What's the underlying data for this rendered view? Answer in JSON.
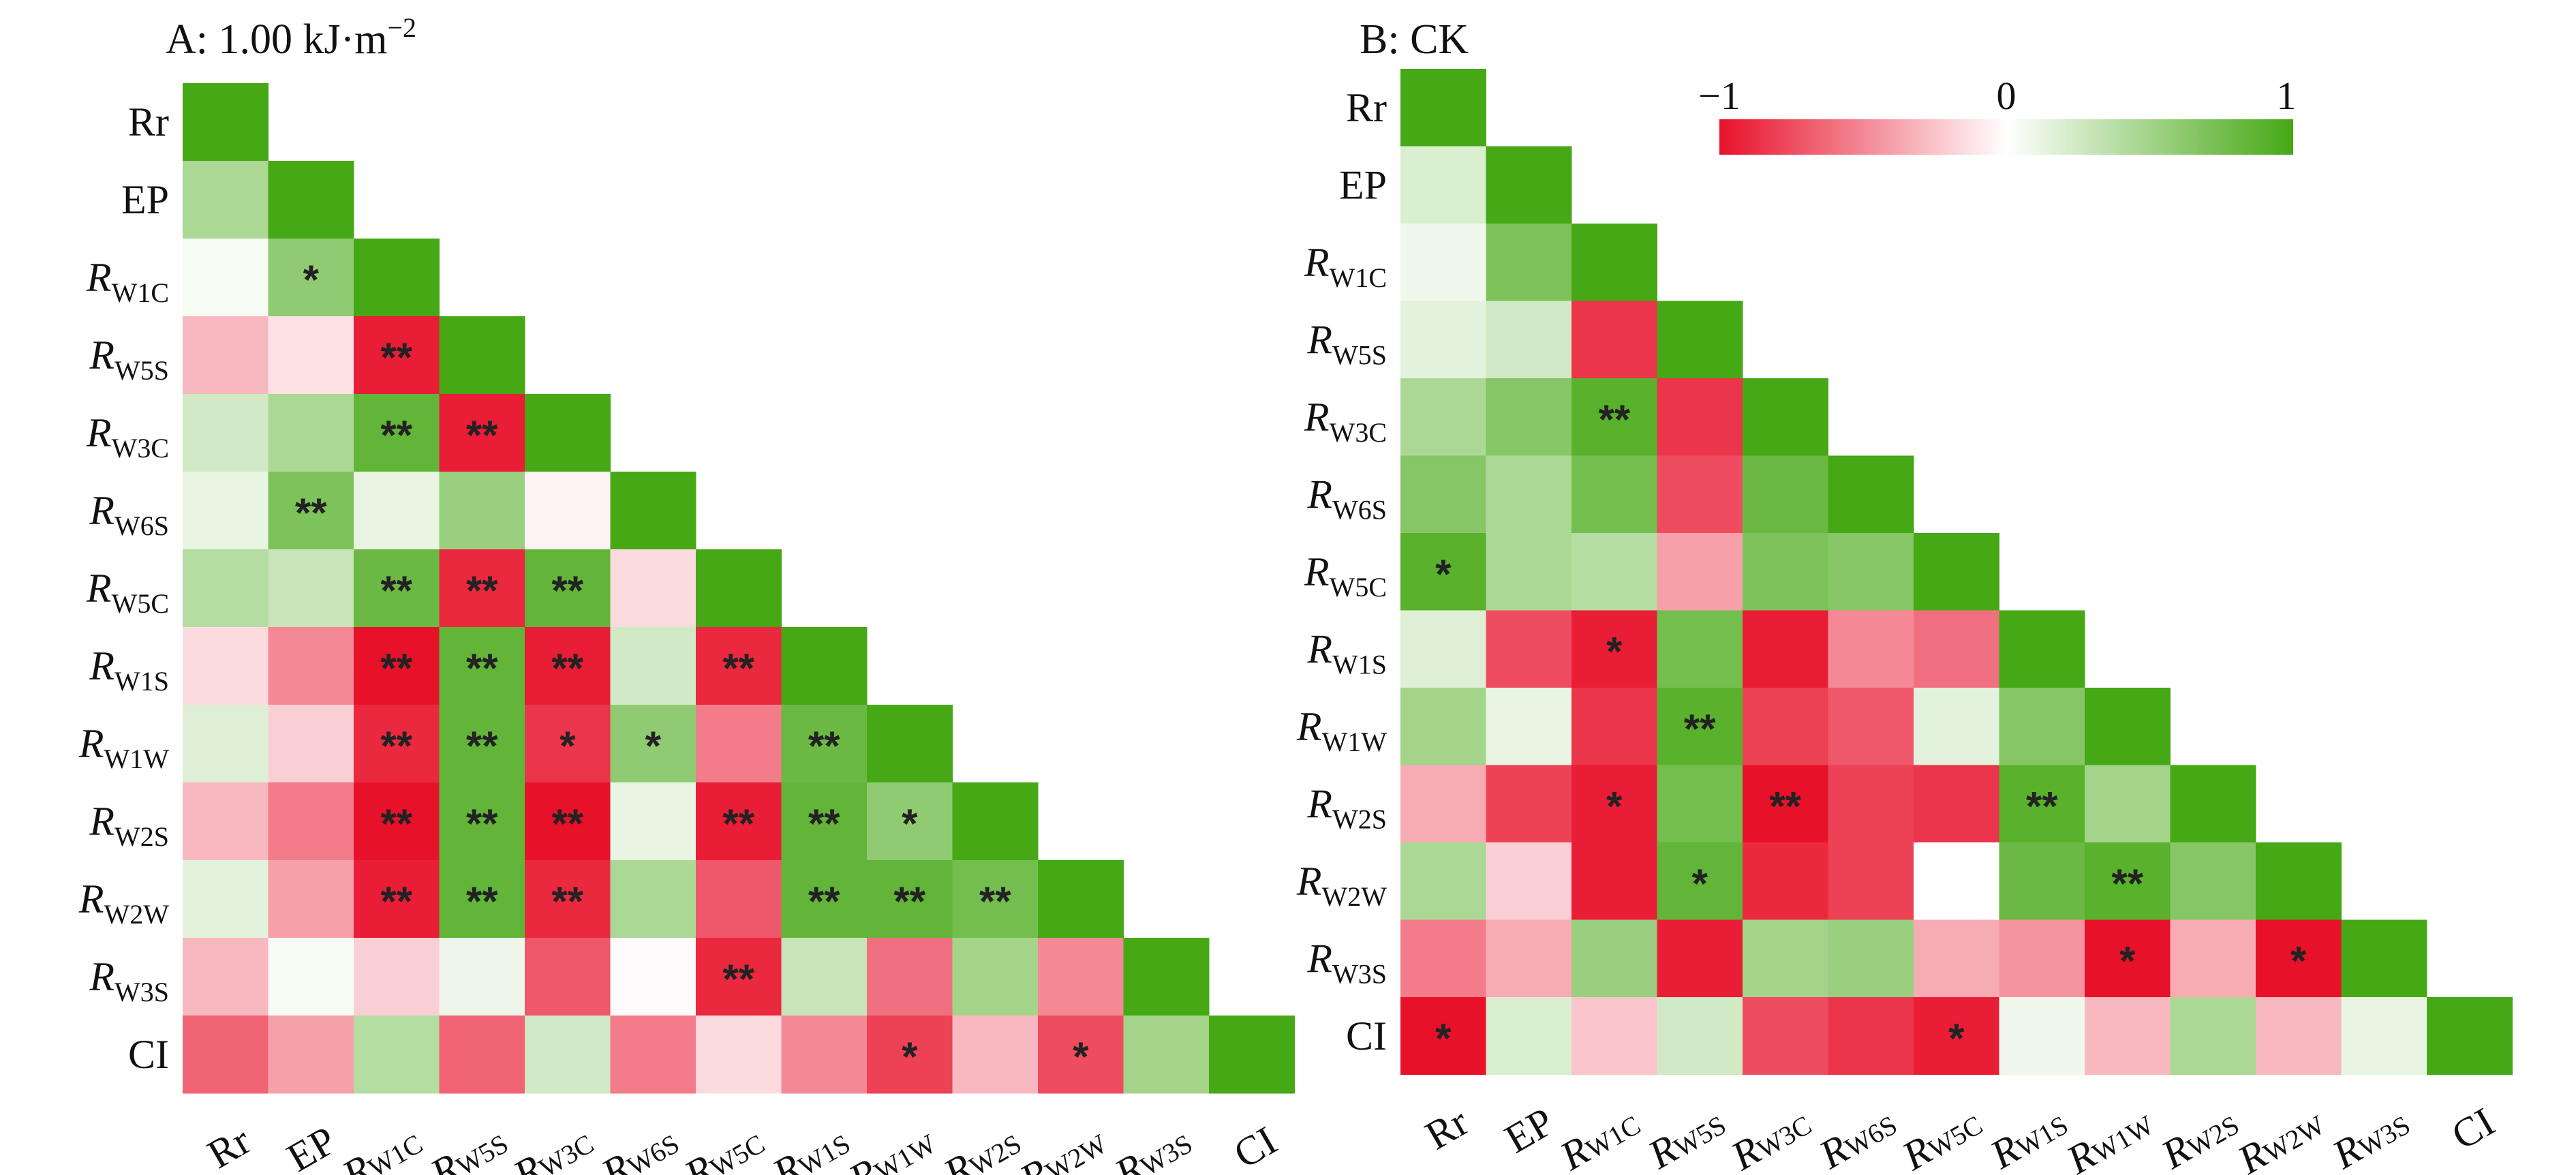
{
  "chart_data": [
    {
      "type": "heatmap",
      "title": "A: 1.00 kJ·m",
      "title_sup": "−2",
      "labels": [
        {
          "main": "Rr",
          "sub": ""
        },
        {
          "main": "EP",
          "sub": ""
        },
        {
          "main": "R",
          "sub": "W1C"
        },
        {
          "main": "R",
          "sub": "W5S"
        },
        {
          "main": "R",
          "sub": "W3C"
        },
        {
          "main": "R",
          "sub": "W6S"
        },
        {
          "main": "R",
          "sub": "W5C"
        },
        {
          "main": "R",
          "sub": "W1S"
        },
        {
          "main": "R",
          "sub": "W1W"
        },
        {
          "main": "R",
          "sub": "W2S"
        },
        {
          "main": "R",
          "sub": "W2W"
        },
        {
          "main": "R",
          "sub": "W3S"
        },
        {
          "main": "CI",
          "sub": ""
        }
      ],
      "values": [
        [
          1.0
        ],
        [
          0.45,
          1.0
        ],
        [
          0.05,
          0.6,
          1.0
        ],
        [
          -0.3,
          -0.12,
          -0.95,
          1.0
        ],
        [
          0.25,
          0.45,
          0.85,
          -0.95,
          1.0
        ],
        [
          0.12,
          0.7,
          0.12,
          0.55,
          -0.05,
          1.0
        ],
        [
          0.4,
          0.3,
          0.8,
          -0.9,
          0.85,
          -0.15,
          1.0
        ],
        [
          -0.15,
          -0.5,
          -1.0,
          0.85,
          -0.95,
          0.25,
          -0.9,
          1.0
        ],
        [
          0.18,
          -0.2,
          -0.9,
          0.85,
          -0.85,
          0.6,
          -0.55,
          0.8,
          1.0
        ],
        [
          -0.3,
          -0.55,
          -1.0,
          0.85,
          -1.0,
          0.12,
          -0.95,
          0.85,
          0.6,
          1.0
        ],
        [
          0.15,
          -0.4,
          -0.95,
          0.85,
          -0.9,
          0.45,
          -0.7,
          0.85,
          0.85,
          0.75,
          1.0
        ],
        [
          -0.3,
          0.05,
          -0.2,
          0.1,
          -0.7,
          -0.02,
          -0.9,
          0.3,
          -0.6,
          0.5,
          -0.5,
          1.0
        ],
        [
          -0.65,
          -0.4,
          0.4,
          -0.65,
          0.25,
          -0.55,
          -0.15,
          -0.5,
          -0.8,
          -0.3,
          -0.75,
          0.5,
          1.0
        ]
      ],
      "significance": [
        [
          ""
        ],
        [
          "",
          ""
        ],
        [
          "",
          "*",
          ""
        ],
        [
          "",
          "",
          "**",
          ""
        ],
        [
          "",
          "",
          "**",
          "**",
          ""
        ],
        [
          "",
          "**",
          "",
          "",
          "",
          ""
        ],
        [
          "",
          "",
          "**",
          "**",
          "**",
          "",
          ""
        ],
        [
          "",
          "",
          "**",
          "**",
          "**",
          "",
          "**",
          ""
        ],
        [
          "",
          "",
          "**",
          "**",
          "*",
          "*",
          "",
          "**",
          ""
        ],
        [
          "",
          "",
          "**",
          "**",
          "**",
          "",
          "**",
          "**",
          "*",
          ""
        ],
        [
          "",
          "",
          "**",
          "**",
          "**",
          "",
          "",
          "**",
          "**",
          "**",
          ""
        ],
        [
          "",
          "",
          "",
          "",
          "",
          "",
          "**",
          "",
          "",
          "",
          "",
          ""
        ],
        [
          "",
          "",
          "",
          "",
          "",
          "",
          "",
          "",
          "*",
          "",
          "*",
          "",
          ""
        ]
      ]
    },
    {
      "type": "heatmap",
      "title": "B: CK",
      "labels": [
        {
          "main": "Rr",
          "sub": ""
        },
        {
          "main": "EP",
          "sub": ""
        },
        {
          "main": "R",
          "sub": "W1C"
        },
        {
          "main": "R",
          "sub": "W5S"
        },
        {
          "main": "R",
          "sub": "W3C"
        },
        {
          "main": "R",
          "sub": "W6S"
        },
        {
          "main": "R",
          "sub": "W5C"
        },
        {
          "main": "R",
          "sub": "W1S"
        },
        {
          "main": "R",
          "sub": "W1W"
        },
        {
          "main": "R",
          "sub": "W2S"
        },
        {
          "main": "R",
          "sub": "W2W"
        },
        {
          "main": "R",
          "sub": "W3S"
        },
        {
          "main": "CI",
          "sub": ""
        }
      ],
      "values": [
        [
          1.0
        ],
        [
          0.2,
          1.0
        ],
        [
          0.08,
          0.7,
          1.0
        ],
        [
          0.15,
          0.25,
          -0.85,
          1.0
        ],
        [
          0.45,
          0.65,
          0.9,
          -0.85,
          1.0
        ],
        [
          0.65,
          0.45,
          0.75,
          -0.75,
          0.8,
          1.0
        ],
        [
          0.9,
          0.45,
          0.4,
          -0.4,
          0.7,
          0.65,
          1.0
        ],
        [
          0.18,
          -0.75,
          -0.95,
          0.75,
          -0.95,
          -0.5,
          -0.6,
          1.0
        ],
        [
          0.5,
          0.12,
          -0.85,
          0.9,
          -0.8,
          -0.7,
          0.15,
          0.65,
          1.0
        ],
        [
          -0.35,
          -0.8,
          -0.95,
          0.75,
          -1.0,
          -0.8,
          -0.85,
          0.9,
          0.5,
          1.0
        ],
        [
          0.45,
          -0.2,
          -0.95,
          0.85,
          -0.9,
          -0.8,
          0.0,
          0.8,
          0.9,
          0.65,
          1.0
        ],
        [
          -0.55,
          -0.35,
          0.55,
          -0.95,
          0.5,
          0.55,
          -0.35,
          -0.45,
          -1.0,
          -0.35,
          -1.0,
          1.0
        ],
        [
          -1.0,
          0.2,
          -0.25,
          0.25,
          -0.75,
          -0.85,
          -0.95,
          0.08,
          -0.3,
          0.45,
          -0.3,
          0.12,
          1.0
        ]
      ],
      "significance": [
        [
          ""
        ],
        [
          "",
          ""
        ],
        [
          "",
          "",
          ""
        ],
        [
          "",
          "",
          "",
          ""
        ],
        [
          "",
          "",
          "**",
          "",
          ""
        ],
        [
          "",
          "",
          "",
          "",
          "",
          ""
        ],
        [
          "*",
          "",
          "",
          "",
          "",
          "",
          ""
        ],
        [
          "",
          "",
          "*",
          "",
          "",
          "",
          "",
          ""
        ],
        [
          "",
          "",
          "",
          "**",
          "",
          "",
          "",
          "",
          ""
        ],
        [
          "",
          "",
          "*",
          "",
          "**",
          "",
          "",
          "**",
          "",
          ""
        ],
        [
          "",
          "",
          "",
          "*",
          "",
          "",
          "",
          "",
          "**",
          "",
          ""
        ],
        [
          "",
          "",
          "",
          "",
          "",
          "",
          "",
          "",
          "*",
          "",
          "*",
          ""
        ],
        [
          "*",
          "",
          "",
          "",
          "",
          "",
          "*",
          "",
          "",
          "",
          "",
          "",
          ""
        ]
      ],
      "legend": {
        "min_label": "−1",
        "mid_label": "0",
        "max_label": "1"
      }
    }
  ],
  "colors": {
    "negative": "#e8112a",
    "zero": "#ffffff",
    "positive": "#46a815",
    "star": "#222222",
    "text": "#111111"
  }
}
